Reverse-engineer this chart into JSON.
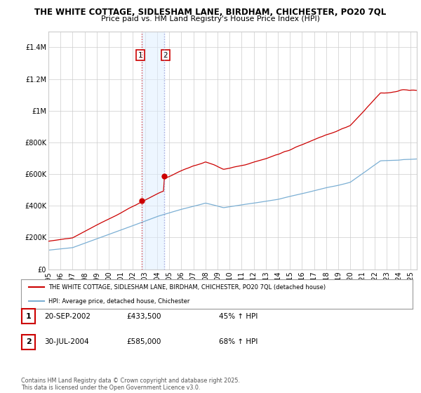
{
  "title_line1": "THE WHITE COTTAGE, SIDLESHAM LANE, BIRDHAM, CHICHESTER, PO20 7QL",
  "title_line2": "Price paid vs. HM Land Registry's House Price Index (HPI)",
  "legend_label1": "THE WHITE COTTAGE, SIDLESHAM LANE, BIRDHAM, CHICHESTER, PO20 7QL (detached house)",
  "legend_label2": "HPI: Average price, detached house, Chichester",
  "line1_color": "#cc0000",
  "line2_color": "#7BAFD4",
  "purchase1_date": "20-SEP-2002",
  "purchase1_price": 433500,
  "purchase1_hpi": "45% ↑ HPI",
  "purchase2_date": "30-JUL-2004",
  "purchase2_price": 585000,
  "purchase2_hpi": "68% ↑ HPI",
  "footer": "Contains HM Land Registry data © Crown copyright and database right 2025.\nThis data is licensed under the Open Government Licence v3.0.",
  "ylim": [
    0,
    1500000
  ],
  "background_color": "#ffffff",
  "shading_color": "#ddeeff",
  "shading_alpha": 0.5,
  "vline_color": "#cc0000",
  "purchase1_year": 2002.72,
  "purchase2_year": 2004.58,
  "xmin": 1995,
  "xmax": 2025.5
}
